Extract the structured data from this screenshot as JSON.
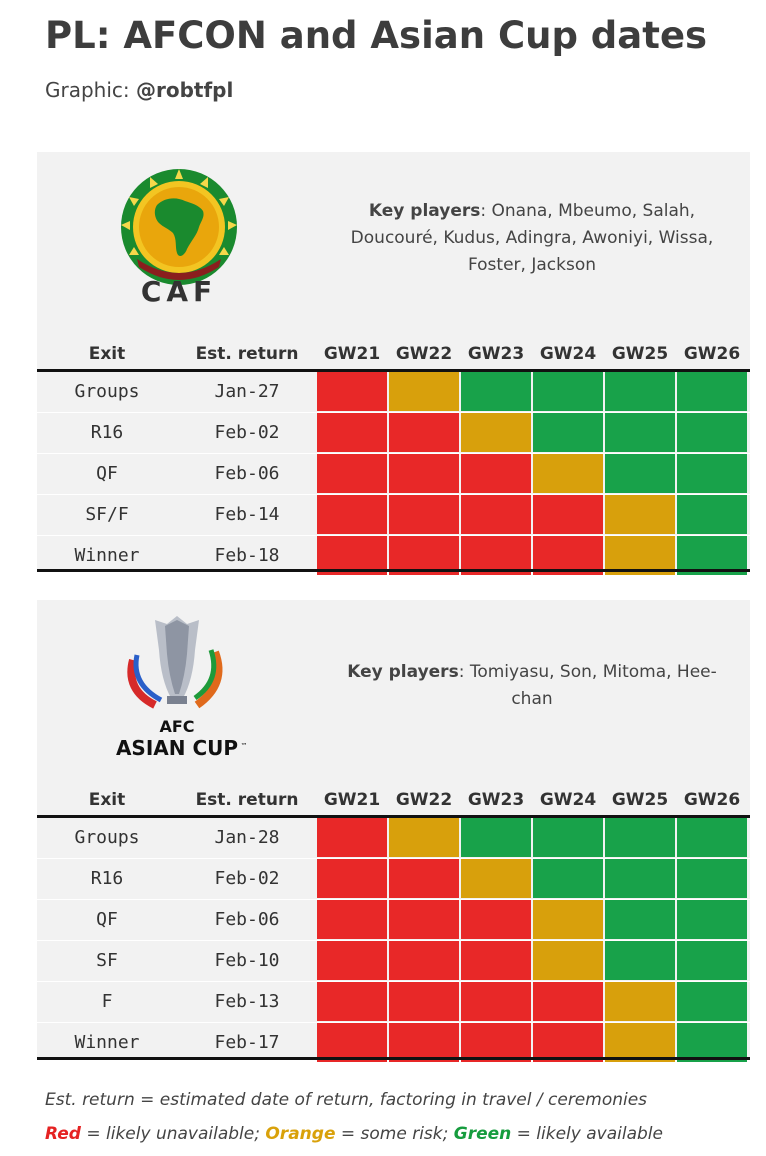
{
  "header": {
    "title": "PL: AFCON and Asian Cup dates",
    "credit_prefix": "Graphic: ",
    "credit_handle": "@robtfpl"
  },
  "colors": {
    "red": "#e82828",
    "orange": "#d8a00c",
    "green": "#18a24a",
    "panel_bg": "#f2f2f2"
  },
  "afcon": {
    "logo_icon": "caf-logo-icon",
    "logo_text": "CAF",
    "key_players_label": "Key players",
    "key_players_line1": ": Onana, Mbeumo, Salah,",
    "key_players_line2": "Doucouré, Kudus, Adingra, Awoniyi, Wissa,",
    "key_players_line3": "Foster, Jackson",
    "columns": [
      "Exit",
      "Est. return",
      "GW21",
      "GW22",
      "GW23",
      "GW24",
      "GW25",
      "GW26"
    ],
    "rows": [
      {
        "exit": "Groups",
        "ret": "Jan-27",
        "status": [
          "red",
          "orange",
          "green",
          "green",
          "green",
          "green"
        ]
      },
      {
        "exit": "R16",
        "ret": "Feb-02",
        "status": [
          "red",
          "red",
          "orange",
          "green",
          "green",
          "green"
        ]
      },
      {
        "exit": "QF",
        "ret": "Feb-06",
        "status": [
          "red",
          "red",
          "red",
          "orange",
          "green",
          "green"
        ]
      },
      {
        "exit": "SF/F",
        "ret": "Feb-14",
        "status": [
          "red",
          "red",
          "red",
          "red",
          "orange",
          "green"
        ]
      },
      {
        "exit": "Winner",
        "ret": "Feb-18",
        "status": [
          "red",
          "red",
          "red",
          "red",
          "orange",
          "green"
        ]
      }
    ]
  },
  "asian_cup": {
    "logo_icon": "afc-asian-cup-logo-icon",
    "logo_text_line1": "AFC",
    "logo_text_line2": "ASIAN CUP",
    "logo_tm": "™",
    "key_players_label": "Key players",
    "key_players_line1": ": Tomiyasu, Son, Mitoma, Hee-",
    "key_players_line2": "chan",
    "columns": [
      "Exit",
      "Est. return",
      "GW21",
      "GW22",
      "GW23",
      "GW24",
      "GW25",
      "GW26"
    ],
    "rows": [
      {
        "exit": "Groups",
        "ret": "Jan-28",
        "status": [
          "red",
          "orange",
          "green",
          "green",
          "green",
          "green"
        ]
      },
      {
        "exit": "R16",
        "ret": "Feb-02",
        "status": [
          "red",
          "red",
          "orange",
          "green",
          "green",
          "green"
        ]
      },
      {
        "exit": "QF",
        "ret": "Feb-06",
        "status": [
          "red",
          "red",
          "red",
          "orange",
          "green",
          "green"
        ]
      },
      {
        "exit": "SF",
        "ret": "Feb-10",
        "status": [
          "red",
          "red",
          "red",
          "orange",
          "green",
          "green"
        ]
      },
      {
        "exit": "F",
        "ret": "Feb-13",
        "status": [
          "red",
          "red",
          "red",
          "red",
          "orange",
          "green"
        ]
      },
      {
        "exit": "Winner",
        "ret": "Feb-17",
        "status": [
          "red",
          "red",
          "red",
          "red",
          "orange",
          "green"
        ]
      }
    ]
  },
  "notes": {
    "line1": "Est. return = estimated date of return, factoring in travel / ceremonies",
    "red_word": "Red",
    "red_rest": " = likely unavailable; ",
    "orange_word": "Orange",
    "orange_rest": " = some risk; ",
    "green_word": "Green",
    "green_rest": " = likely available"
  }
}
